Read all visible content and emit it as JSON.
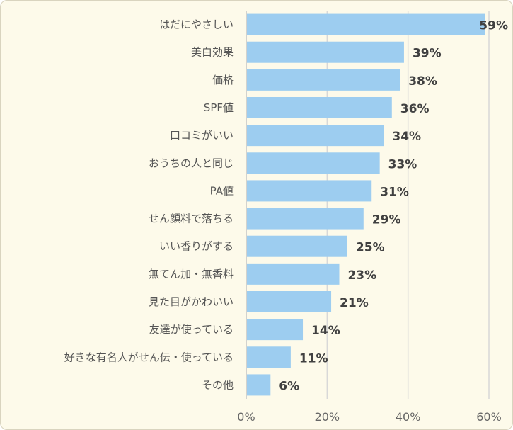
{
  "chart_data": {
    "type": "bar",
    "orientation": "horizontal",
    "categories": [
      "はだにやさしい",
      "美白効果",
      "価格",
      "SPF値",
      "口コミがいい",
      "おうちの人と同じ",
      "PA値",
      "せん顔料で落ちる",
      "いい香りがする",
      "無てん加・無香料",
      "見た目がかわいい",
      "友達が使っている",
      "好きな有名人がせん伝・使っている",
      "その他"
    ],
    "values": [
      59,
      39,
      38,
      36,
      34,
      33,
      31,
      29,
      25,
      23,
      21,
      14,
      11,
      6
    ],
    "data_labels": [
      "59%",
      "39%",
      "38%",
      "36%",
      "34%",
      "33%",
      "31%",
      "29%",
      "25%",
      "23%",
      "21%",
      "14%",
      "11%",
      "6%"
    ],
    "x_ticks": [
      0,
      20,
      40,
      60
    ],
    "x_tick_labels": [
      "0%",
      "20%",
      "40%",
      "60%"
    ],
    "xlim": [
      0,
      60
    ],
    "grid": true,
    "legend": "none",
    "title": "",
    "xlabel": "",
    "ylabel": "",
    "colors": {
      "bar": "#9dcdf0",
      "background": "#fdfaea",
      "gridline": "#d8d8d8"
    }
  }
}
